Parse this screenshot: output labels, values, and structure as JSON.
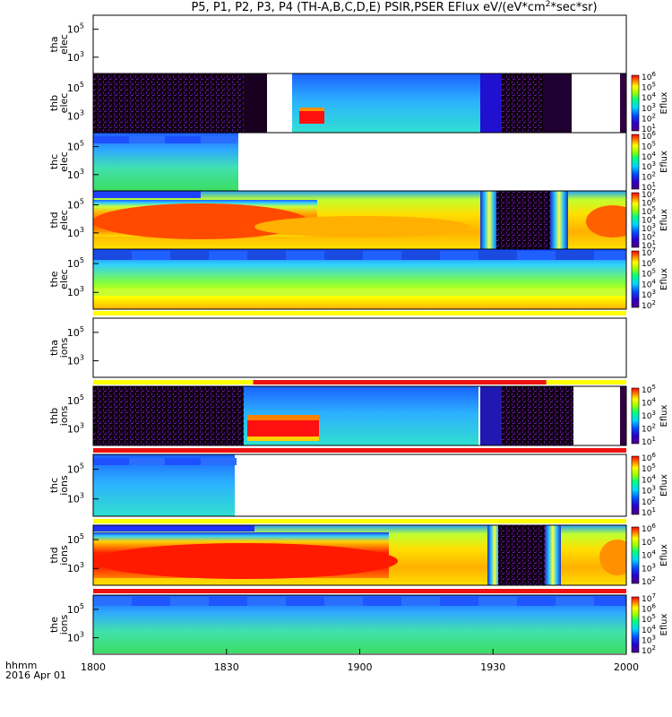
{
  "title": "P5, P1, P2, P3, P4 (TH-A,B,C,D,E) PSIR,PSER EFlux eV/(eV*cm^2*sec*sr)",
  "title_parts": {
    "main": "P5, P1, P2, P3, P4 (TH-A,B,C,D,E) PSIR,PSER EFlux eV/(eV*cm",
    "sup": "2",
    "end": "*sec*sr)"
  },
  "footer": {
    "line1": "hhmm",
    "line2": "2016 Apr 01"
  },
  "x_ticks": [
    "1800",
    "1830",
    "1900",
    "1930",
    "2000"
  ],
  "colorbar_label": "Eflux",
  "colors": {
    "background": "#ffffff",
    "axis": "#000000",
    "status_red": "#ee1111",
    "status_yellow": "#ffff00"
  },
  "chart_data": {
    "type": "heatmap",
    "x_axis": {
      "label": "hhmm",
      "date": "2016 Apr 01",
      "range": [
        "18:00",
        "20:00"
      ],
      "tick_labels": [
        "1800",
        "1830",
        "1900",
        "1930",
        "2000"
      ]
    },
    "colormap": "rainbow (purple-blue-cyan-green-yellow-red)",
    "panels": [
      {
        "id": "tha_elec",
        "ylabel": [
          "tha",
          "elec"
        ],
        "y_ticks": [
          "10^5",
          "10^3"
        ],
        "y_scale": "log",
        "colorbar": false,
        "data": "no data"
      },
      {
        "id": "thb_elec",
        "ylabel": [
          "thb",
          "elec"
        ],
        "y_ticks": [
          "10^5",
          "10^3"
        ],
        "y_scale": "log",
        "colorbar": {
          "min_exp": 1,
          "max_exp": 6
        }
      },
      {
        "id": "thc_elec",
        "ylabel": [
          "thc",
          "elec"
        ],
        "y_ticks": [
          "10^5",
          "10^3"
        ],
        "y_scale": "log",
        "colorbar": {
          "min_exp": 1,
          "max_exp": 6
        },
        "data_end": "18:33"
      },
      {
        "id": "thd_elec",
        "ylabel": [
          "thd",
          "elec"
        ],
        "y_ticks": [
          "10^5",
          "10^3"
        ],
        "y_scale": "log",
        "colorbar": {
          "min_exp": 1,
          "max_exp": 7
        }
      },
      {
        "id": "the_elec",
        "ylabel": [
          "the",
          "elec"
        ],
        "y_ticks": [
          "10^5",
          "10^3"
        ],
        "y_scale": "log",
        "colorbar": {
          "min_exp": 2,
          "max_exp": 7
        }
      },
      {
        "id": "tha_ions",
        "ylabel": [
          "tha",
          "ions"
        ],
        "y_ticks": [
          "10^5",
          "10^3"
        ],
        "y_scale": "log",
        "colorbar": false,
        "data": "no data"
      },
      {
        "id": "thb_ions",
        "ylabel": [
          "thb",
          "ions"
        ],
        "y_ticks": [
          "10^5",
          "10^3"
        ],
        "y_scale": "log",
        "colorbar": {
          "min_exp": 1,
          "max_exp": 5
        }
      },
      {
        "id": "thc_ions",
        "ylabel": [
          "thc",
          "ions"
        ],
        "y_ticks": [
          "10^5",
          "10^3"
        ],
        "y_scale": "log",
        "colorbar": {
          "min_exp": 1,
          "max_exp": 6
        },
        "data_end": "18:32"
      },
      {
        "id": "thd_ions",
        "ylabel": [
          "thd",
          "ions"
        ],
        "y_ticks": [
          "10^5",
          "10^3"
        ],
        "y_scale": "log",
        "colorbar": {
          "min_exp": 2,
          "max_exp": 6
        }
      },
      {
        "id": "the_ions",
        "ylabel": [
          "the",
          "ions"
        ],
        "y_ticks": [
          "10^5",
          "10^3"
        ],
        "y_scale": "log",
        "colorbar": {
          "min_exp": 2,
          "max_exp": 7
        }
      }
    ],
    "status_bars": [
      {
        "after_panel": "the_elec",
        "segments": [
          {
            "from": "18:00",
            "to": "20:00",
            "color": "yellow"
          }
        ]
      },
      {
        "after_panel": "tha_ions",
        "segments": [
          {
            "from": "18:00",
            "to": "18:36",
            "color": "yellow"
          },
          {
            "from": "18:36",
            "to": "19:42",
            "color": "red"
          },
          {
            "from": "19:42",
            "to": "20:00",
            "color": "yellow"
          }
        ]
      },
      {
        "after_panel": "thb_ions",
        "segments": [
          {
            "from": "18:00",
            "to": "20:00",
            "color": "red"
          }
        ]
      },
      {
        "after_panel": "thc_ions",
        "segments": [
          {
            "from": "18:00",
            "to": "20:00",
            "color": "yellow"
          }
        ]
      },
      {
        "after_panel": "thd_ions",
        "segments": [
          {
            "from": "18:00",
            "to": "20:00",
            "color": "red"
          }
        ]
      }
    ]
  }
}
